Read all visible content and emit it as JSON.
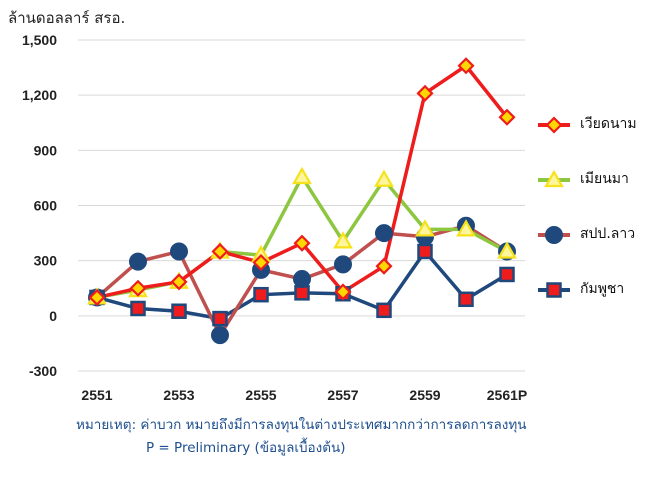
{
  "unit_label": "ล้านดอลลาร์ สรอ.",
  "notes": {
    "line1": "หมายเหตุ: ค่าบวก หมายถึงมีการลงทุนในต่างประเทศมากกว่าการลดการลงทุน",
    "line2": "P = Preliminary (ข้อมูลเบื้องต้น)"
  },
  "colors": {
    "axis_text": "#222222",
    "grid": "#d9d9d9",
    "note_text": "#1f4f8f"
  },
  "chart_data": {
    "type": "line",
    "title": "",
    "ylabel": "ล้านดอลลาร์ สรอ.",
    "xlabel": "",
    "ylim": [
      -300,
      1500
    ],
    "yticks": [
      -300,
      0,
      300,
      600,
      900,
      1200,
      1500
    ],
    "ytick_labels": [
      "-300",
      "0",
      "300",
      "600",
      "900",
      "1,200",
      "1,500"
    ],
    "categories": [
      "2551",
      "2552",
      "2553",
      "2554",
      "2555",
      "2556",
      "2557",
      "2558",
      "2559",
      "2560",
      "2561P"
    ],
    "xtick_labels": [
      "2551",
      "",
      "2553",
      "",
      "2555",
      "",
      "2557",
      "",
      "2559",
      "",
      "2561P"
    ],
    "grid": true,
    "legend": "right",
    "series": [
      {
        "name": "เวียดนาม",
        "color": "#ee1c1c",
        "marker": "diamond",
        "marker_fill": "#ffd700",
        "marker_stroke": "#ee1c1c",
        "values": [
          100,
          150,
          185,
          350,
          290,
          395,
          130,
          270,
          1210,
          1360,
          1080
        ]
      },
      {
        "name": "เมียนมา",
        "color": "#8dc63f",
        "marker": "triangle",
        "marker_fill": "#fff59d",
        "marker_stroke": "#f5e21b",
        "values": [
          100,
          140,
          185,
          350,
          330,
          755,
          405,
          740,
          470,
          470,
          350
        ]
      },
      {
        "name": "สปป.ลาว",
        "color": "#c0504d",
        "marker": "circle",
        "marker_fill": "#1f497d",
        "marker_stroke": "#1f497d",
        "values": [
          100,
          295,
          350,
          -105,
          250,
          200,
          280,
          450,
          430,
          490,
          350
        ]
      },
      {
        "name": "กัมพูชา",
        "color": "#1f497d",
        "marker": "square",
        "marker_fill": "#ee1c1c",
        "marker_stroke": "#1f497d",
        "values": [
          100,
          40,
          25,
          -15,
          115,
          125,
          120,
          30,
          350,
          90,
          225
        ]
      }
    ]
  }
}
